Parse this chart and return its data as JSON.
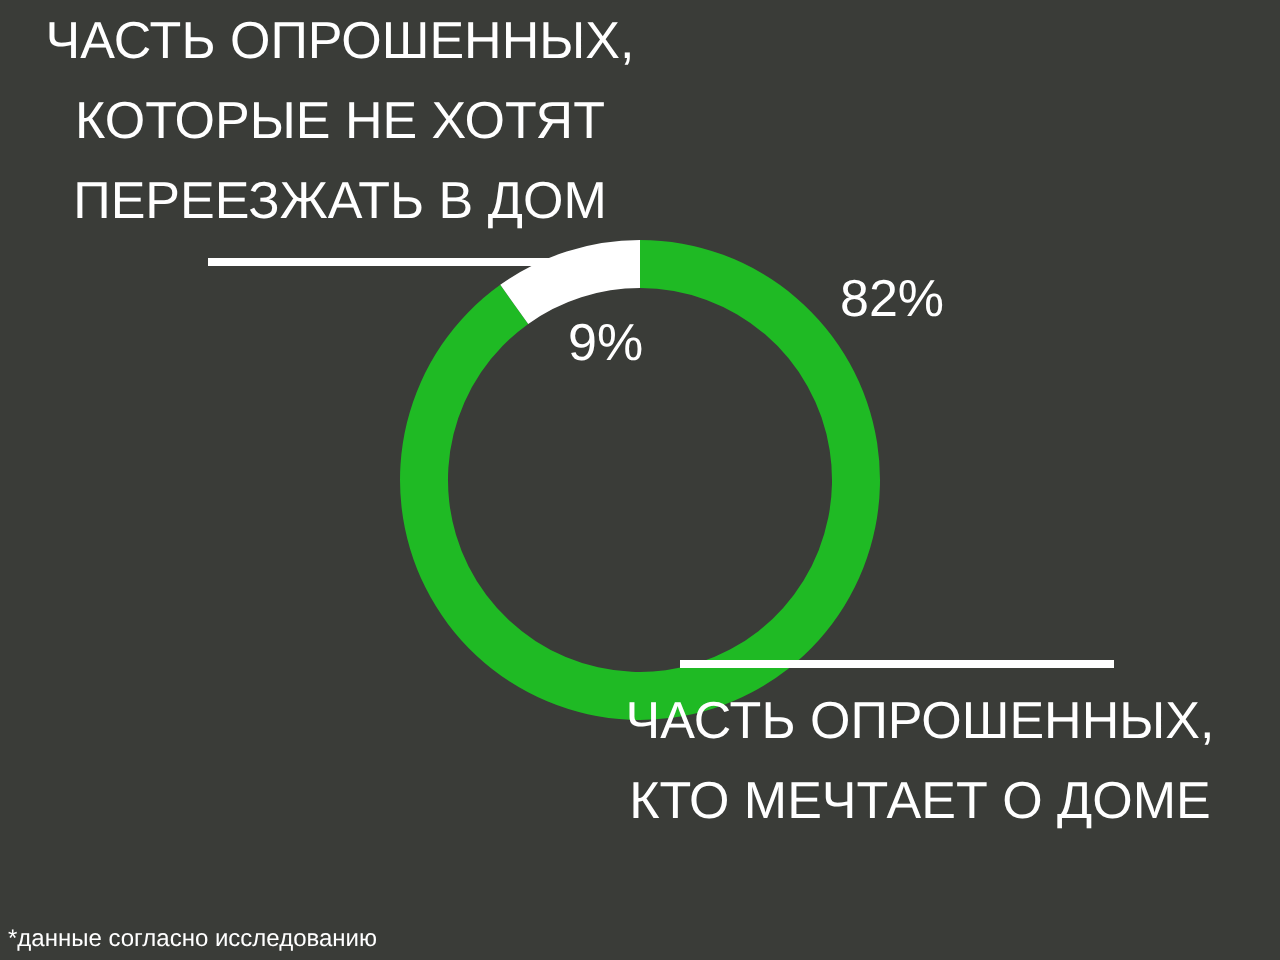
{
  "chart_data": {
    "type": "donut",
    "categories": [
      "ЧАСТЬ ОПРОШЕННЫХ, КТО МЕЧТАЕТ О ДОМЕ",
      "ЧАСТЬ ОПРОШЕННЫХ, КОТОРЫЕ НЕ ХОТЯТ ПЕРЕЕЗЖАТЬ В ДОМ"
    ],
    "values": [
      82,
      9
    ],
    "colors": [
      "#1fba24",
      "#ffffff"
    ],
    "value_labels": [
      "82%",
      "9%"
    ],
    "annotations": [
      "*данные согласно исследованию"
    ],
    "legend": false
  }
}
